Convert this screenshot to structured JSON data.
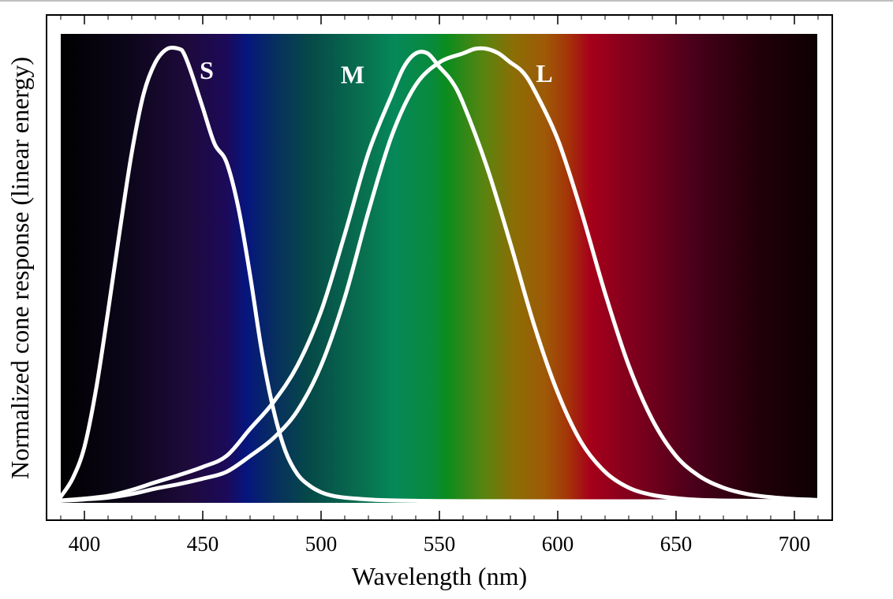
{
  "chart_data": {
    "type": "line",
    "xlabel": "Wavelength (nm)",
    "ylabel": "Normalized cone response (linear energy)",
    "xlim": [
      390,
      710
    ],
    "ylim": [
      0,
      1.0
    ],
    "x_ticks": [
      400,
      450,
      500,
      550,
      600,
      650,
      700
    ],
    "grid": false,
    "legend": "none",
    "background": "visible spectrum gradient",
    "curve_color": "#ffffff",
    "series": [
      {
        "name": "S",
        "x": [
          390,
          395,
          400,
          405,
          410,
          415,
          420,
          425,
          430,
          435,
          440,
          442,
          445,
          450,
          455,
          460,
          465,
          470,
          475,
          480,
          485,
          490,
          495,
          500,
          505,
          510,
          520,
          530,
          540,
          550,
          560,
          580,
          600,
          650,
          700
        ],
        "y": [
          0.01,
          0.05,
          0.12,
          0.25,
          0.42,
          0.6,
          0.77,
          0.9,
          0.97,
          1.0,
          1.0,
          0.99,
          0.95,
          0.87,
          0.79,
          0.75,
          0.65,
          0.5,
          0.33,
          0.2,
          0.11,
          0.06,
          0.035,
          0.02,
          0.012,
          0.008,
          0.004,
          0.002,
          0.001,
          0.0005,
          0.0002,
          0.0001,
          0,
          0,
          0
        ]
      },
      {
        "name": "M",
        "x": [
          390,
          400,
          410,
          420,
          430,
          440,
          450,
          460,
          470,
          480,
          490,
          500,
          510,
          520,
          530,
          535,
          540,
          545,
          550,
          555,
          560,
          570,
          580,
          590,
          600,
          610,
          620,
          630,
          640,
          650,
          660,
          680,
          700,
          710
        ],
        "y": [
          0.002,
          0.006,
          0.012,
          0.025,
          0.042,
          0.058,
          0.076,
          0.1,
          0.16,
          0.22,
          0.3,
          0.42,
          0.59,
          0.77,
          0.9,
          0.96,
          0.99,
          0.99,
          0.96,
          0.93,
          0.88,
          0.74,
          0.57,
          0.39,
          0.24,
          0.13,
          0.065,
          0.03,
          0.014,
          0.007,
          0.003,
          0.001,
          0.0003,
          0.0001
        ]
      },
      {
        "name": "L",
        "x": [
          390,
          400,
          410,
          420,
          430,
          440,
          450,
          460,
          470,
          480,
          490,
          500,
          510,
          520,
          530,
          540,
          550,
          560,
          565,
          570,
          575,
          580,
          585,
          590,
          600,
          610,
          620,
          630,
          640,
          650,
          660,
          670,
          680,
          690,
          700,
          710
        ],
        "y": [
          0.001,
          0.004,
          0.008,
          0.016,
          0.028,
          0.038,
          0.05,
          0.065,
          0.1,
          0.14,
          0.2,
          0.3,
          0.45,
          0.64,
          0.81,
          0.92,
          0.97,
          0.99,
          1.0,
          1.0,
          0.99,
          0.97,
          0.95,
          0.91,
          0.8,
          0.64,
          0.46,
          0.3,
          0.18,
          0.1,
          0.055,
          0.03,
          0.016,
          0.009,
          0.005,
          0.003
        ]
      }
    ]
  }
}
